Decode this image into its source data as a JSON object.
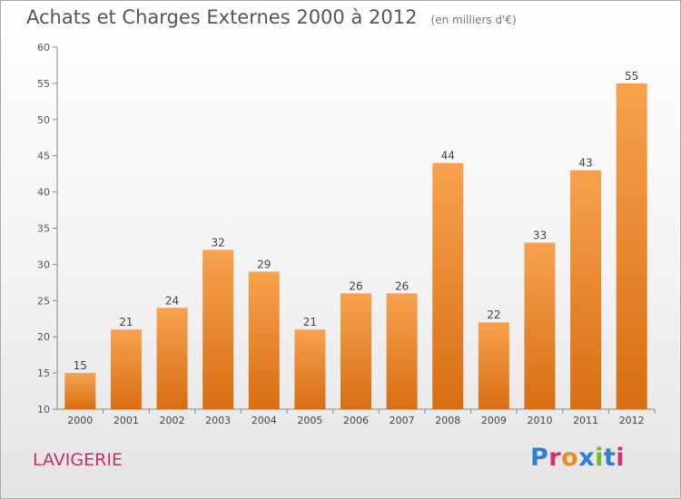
{
  "title": "Achats et Charges Externes 2000 à 2012",
  "unit": "(en milliers d'€)",
  "commune": "LAVIGERIE",
  "logo": {
    "text": "Proxiti",
    "colors": [
      "#2e7fd1",
      "#d4306b",
      "#f08a1a",
      "#2e7fd1",
      "#7ab629",
      "#2e7fd1",
      "#d4306b"
    ]
  },
  "chart_data": {
    "type": "bar",
    "categories": [
      "2000",
      "2001",
      "2002",
      "2003",
      "2004",
      "2005",
      "2006",
      "2007",
      "2008",
      "2009",
      "2010",
      "2011",
      "2012"
    ],
    "values": [
      15,
      21,
      24,
      32,
      29,
      21,
      26,
      26,
      44,
      22,
      33,
      43,
      55
    ],
    "ylim": [
      10,
      60
    ],
    "yticks": [
      10,
      15,
      20,
      25,
      30,
      35,
      40,
      45,
      50,
      55,
      60
    ],
    "grid": false,
    "bar_color": "#f08a2c"
  }
}
